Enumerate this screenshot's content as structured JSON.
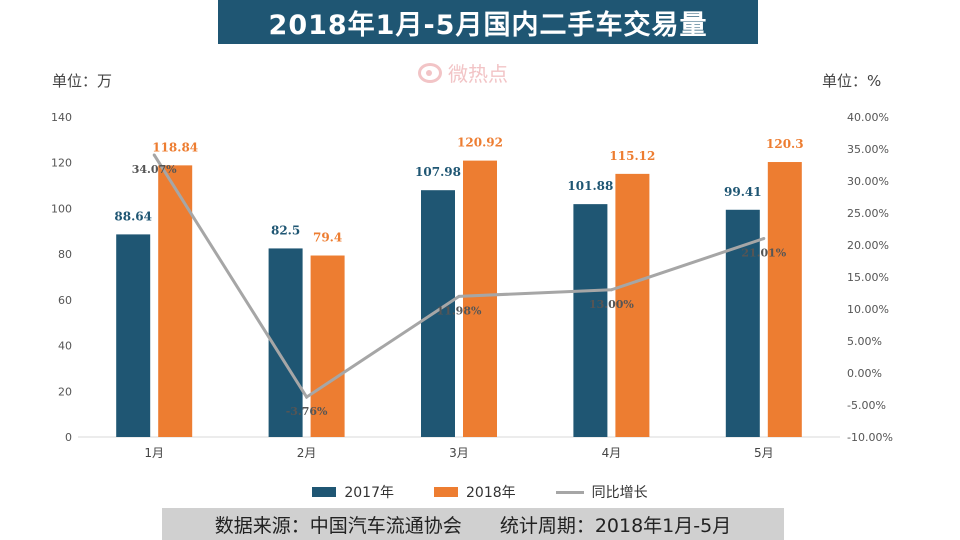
{
  "title": "2018年1月-5月国内二手车交易量",
  "unit_left": "单位：万",
  "unit_right": "单位：%",
  "watermark": "微热点",
  "footer": {
    "source": "数据来源：中国汽车流通协会",
    "period": "统计周期：2018年1月-5月"
  },
  "colors": {
    "s2017": "#1f5673",
    "s2018": "#ed7d31",
    "growth": "#a6a6a6"
  },
  "chart_data": {
    "type": "bar",
    "categories": [
      "1月",
      "2月",
      "3月",
      "4月",
      "5月"
    ],
    "series": [
      {
        "name": "2017年",
        "values": [
          88.64,
          82.5,
          107.98,
          101.88,
          99.41
        ],
        "labels": [
          "88.64",
          "82.5",
          "107.98",
          "101.88",
          "99.41"
        ]
      },
      {
        "name": "2018年",
        "values": [
          118.84,
          79.4,
          120.92,
          115.12,
          120.3
        ],
        "labels": [
          "118.84",
          "79.4",
          "120.92",
          "115.12",
          "120.3"
        ]
      }
    ],
    "line_series": {
      "name": "同比增长",
      "values": [
        34.07,
        -3.76,
        11.98,
        13.0,
        21.01
      ],
      "labels": [
        "34.07%",
        "-3.76%",
        "11.98%",
        "13.00%",
        "21.01%"
      ]
    },
    "y_left": {
      "min": 0,
      "max": 140,
      "ticks": [
        "0",
        "20",
        "40",
        "60",
        "80",
        "100",
        "120",
        "140"
      ]
    },
    "y_right": {
      "min": -10,
      "max": 40,
      "ticks": [
        "-10.00%",
        "-5.00%",
        "0.00%",
        "5.00%",
        "10.00%",
        "15.00%",
        "20.00%",
        "25.00%",
        "30.00%",
        "35.00%",
        "40.00%"
      ]
    },
    "grid": false,
    "legend": "bottom"
  }
}
